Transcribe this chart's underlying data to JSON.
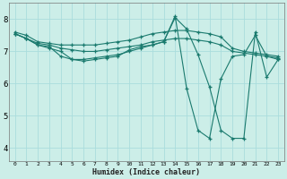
{
  "xlabel": "Humidex (Indice chaleur)",
  "bg_color": "#cceee8",
  "grid_color": "#aadddd",
  "line_color": "#1a7a6e",
  "xlim": [
    -0.5,
    23.5
  ],
  "ylim": [
    3.6,
    8.5
  ],
  "yticks": [
    4,
    5,
    6,
    7,
    8
  ],
  "xticks": [
    0,
    1,
    2,
    3,
    4,
    5,
    6,
    7,
    8,
    9,
    10,
    11,
    12,
    13,
    14,
    15,
    16,
    17,
    18,
    19,
    20,
    21,
    22,
    23
  ],
  "series": [
    {
      "x": [
        0,
        1,
        2,
        3,
        4,
        5,
        6,
        7,
        8,
        9,
        10,
        11,
        12,
        13,
        14,
        15,
        16,
        17,
        18,
        19,
        20,
        21,
        22,
        23
      ],
      "y": [
        7.6,
        7.5,
        7.3,
        7.25,
        7.2,
        7.2,
        7.2,
        7.2,
        7.25,
        7.3,
        7.35,
        7.45,
        7.55,
        7.6,
        7.65,
        7.65,
        7.6,
        7.55,
        7.45,
        7.1,
        7.0,
        6.95,
        6.9,
        6.85
      ]
    },
    {
      "x": [
        0,
        1,
        2,
        3,
        4,
        5,
        6,
        7,
        8,
        9,
        10,
        11,
        12,
        13,
        14,
        15,
        16,
        17,
        18,
        19,
        20,
        21,
        22,
        23
      ],
      "y": [
        7.55,
        7.4,
        7.25,
        7.2,
        7.1,
        7.05,
        7.0,
        7.0,
        7.05,
        7.1,
        7.15,
        7.2,
        7.3,
        7.35,
        7.4,
        7.4,
        7.35,
        7.3,
        7.2,
        7.0,
        6.95,
        6.9,
        6.85,
        6.8
      ]
    },
    {
      "x": [
        0,
        1,
        2,
        3,
        4,
        5,
        6,
        7,
        8,
        9,
        10,
        11,
        12,
        13,
        14,
        15,
        16,
        17,
        18,
        19,
        20,
        21,
        22,
        23
      ],
      "y": [
        7.55,
        7.4,
        7.2,
        7.15,
        6.85,
        6.75,
        6.75,
        6.8,
        6.85,
        6.9,
        7.0,
        7.1,
        7.2,
        7.3,
        8.05,
        7.7,
        6.9,
        5.9,
        4.55,
        4.3,
        4.3,
        7.6,
        6.2,
        6.75
      ]
    },
    {
      "x": [
        0,
        1,
        2,
        3,
        4,
        5,
        6,
        7,
        8,
        9,
        10,
        11,
        12,
        13,
        14,
        15,
        16,
        17,
        18,
        19,
        20,
        21,
        22,
        23
      ],
      "y": [
        7.55,
        7.4,
        7.2,
        7.1,
        7.0,
        6.75,
        6.7,
        6.75,
        6.8,
        6.85,
        7.05,
        7.15,
        7.2,
        7.3,
        8.1,
        5.85,
        4.55,
        4.3,
        6.15,
        6.85,
        6.9,
        7.5,
        6.85,
        6.75
      ]
    }
  ]
}
